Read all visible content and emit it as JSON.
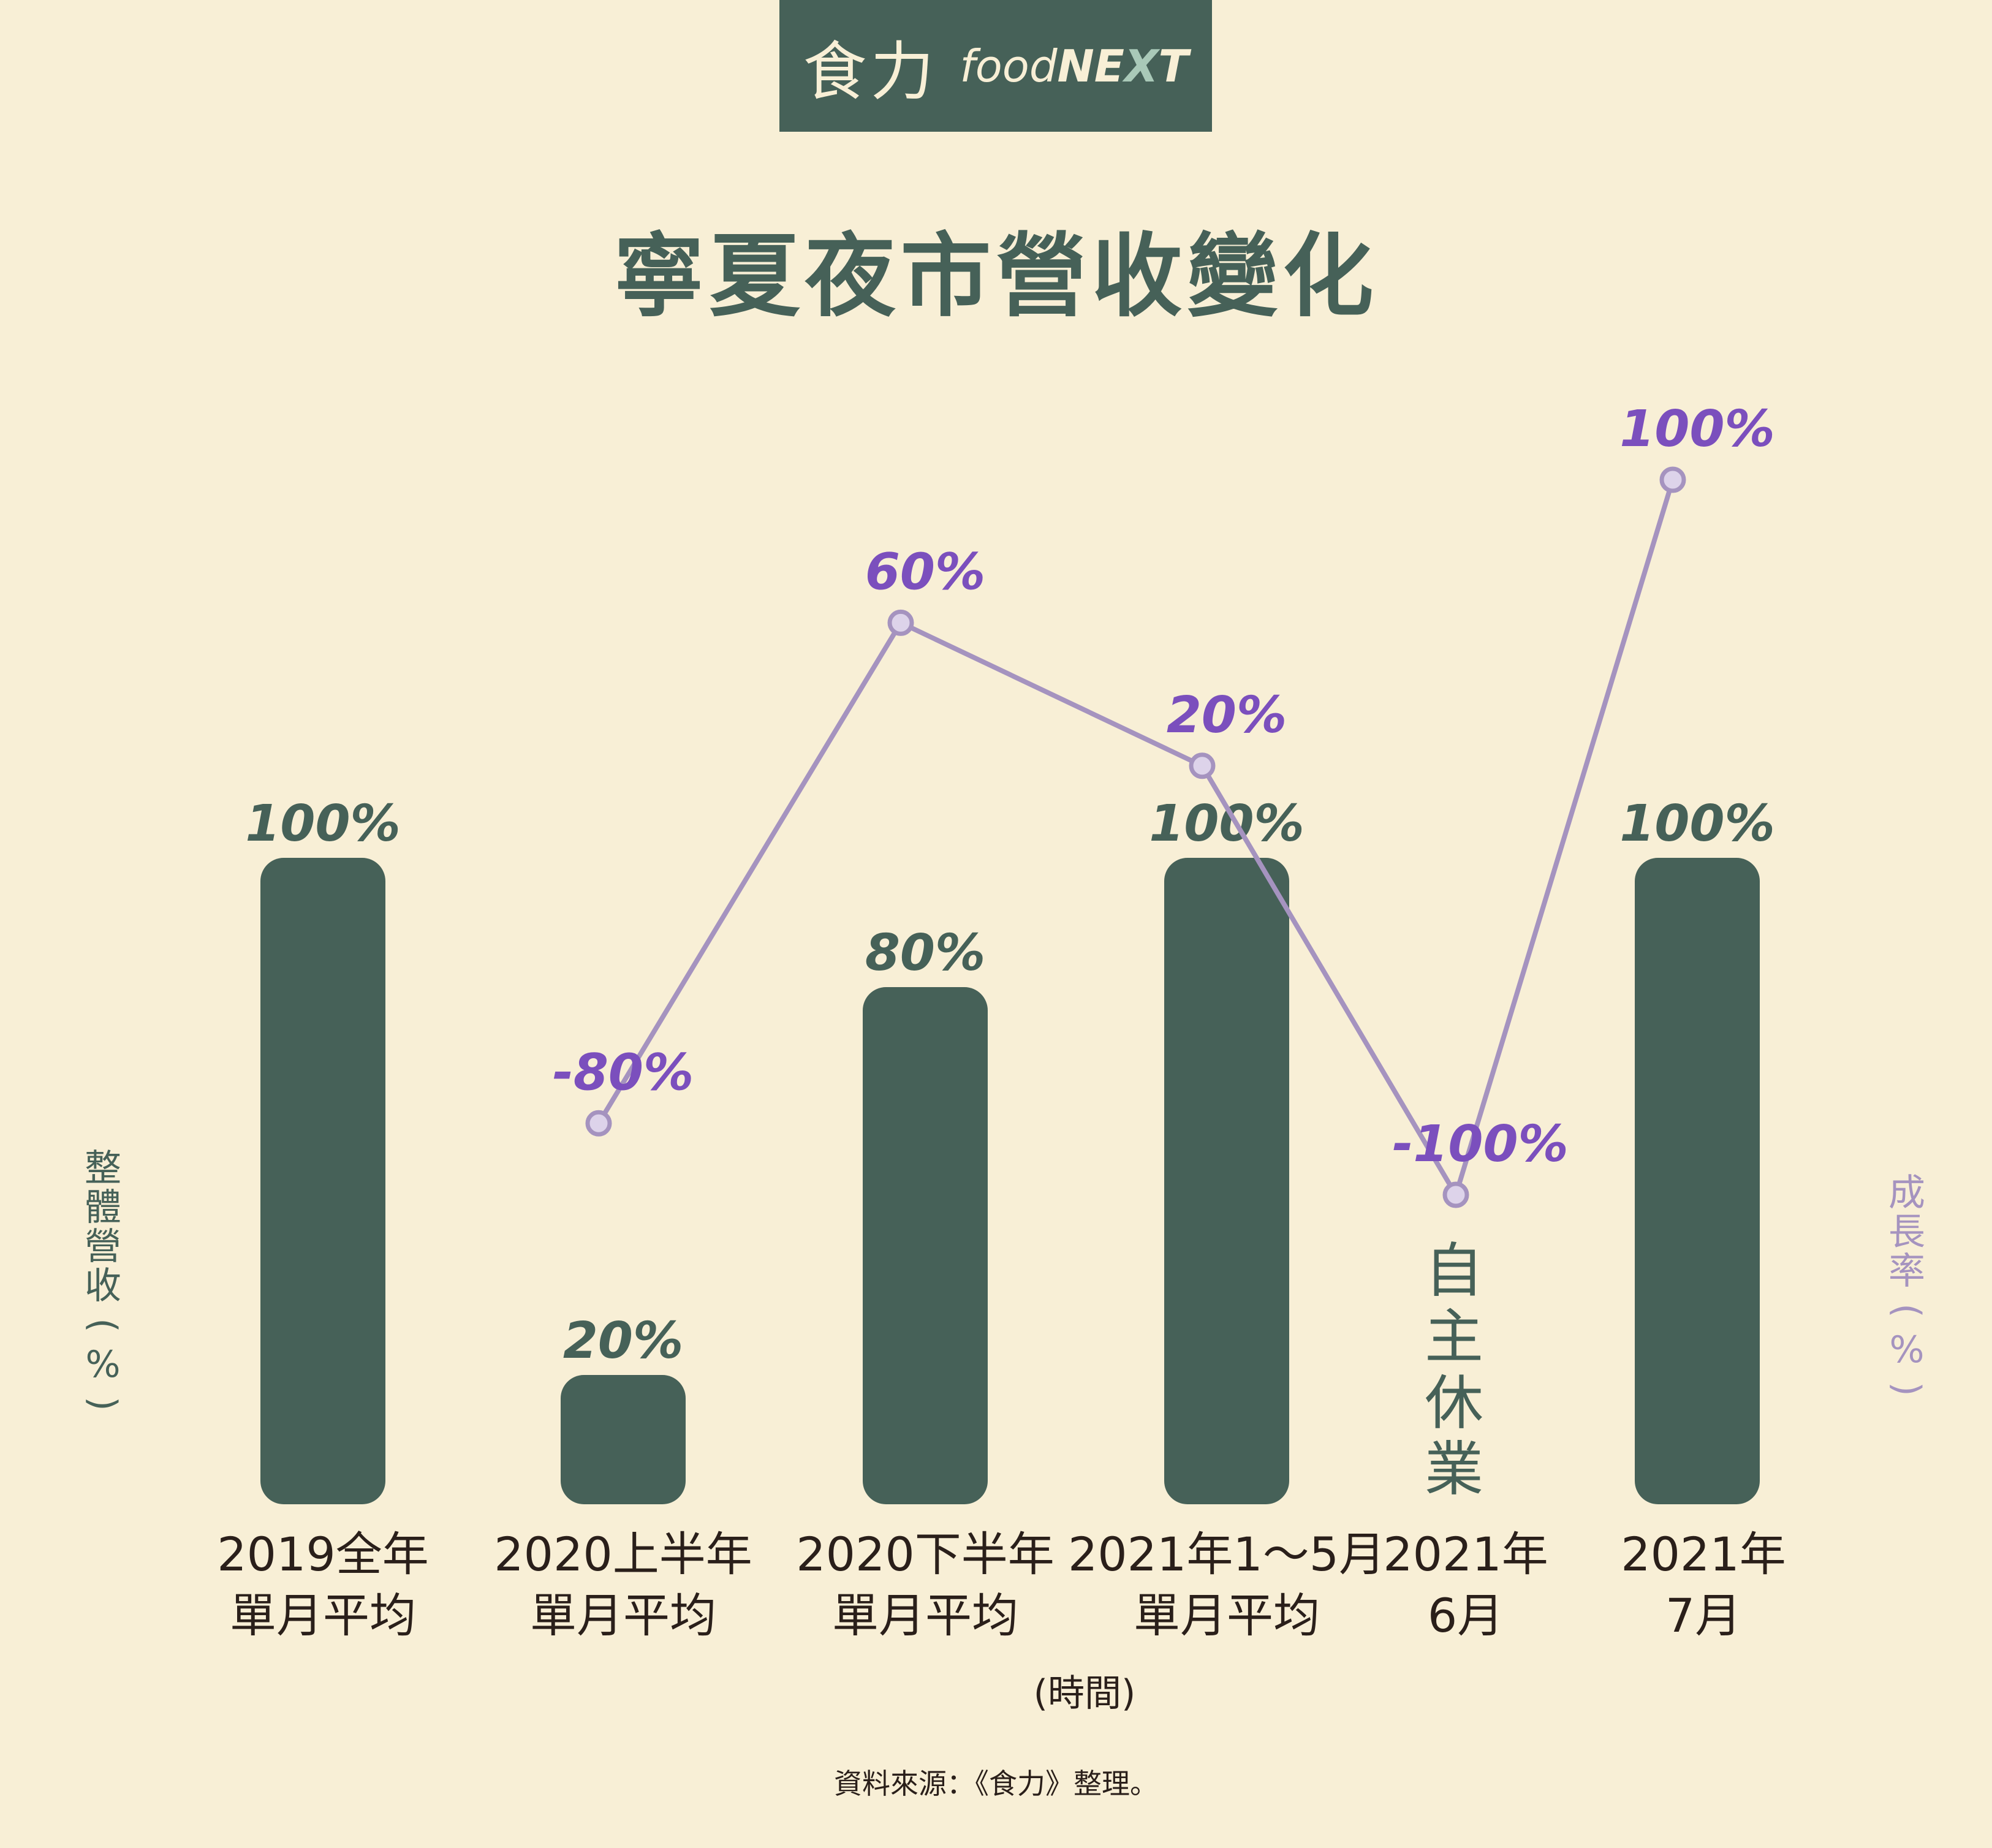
{
  "brand": {
    "chinese": "食力",
    "english_prefix": "food",
    "english_bold": "NE",
    "english_accent": "X",
    "english_tail": "T"
  },
  "title": "寧夏夜市營收變化",
  "left_axis_label": "整體營收(%)",
  "right_axis_label": "成長率(%)",
  "x_axis_label": "(時間)",
  "closed_note": "自主休業",
  "source": "資料來源：《食力》整理。",
  "colors": {
    "bar": "#466158",
    "line": "#a593bf",
    "line_label": "#7b4fbd",
    "bar_label": "#466158",
    "background": "#f8efd6"
  },
  "chart_data": {
    "type": "bar",
    "categories": [
      {
        "line1": "2019全年",
        "line2": "單月平均"
      },
      {
        "line1": "2020上半年",
        "line2": "單月平均"
      },
      {
        "line1": "2020下半年",
        "line2": "單月平均"
      },
      {
        "line1": "2021年1～5月",
        "line2": "單月平均"
      },
      {
        "line1": "2021年",
        "line2": "6月"
      },
      {
        "line1": "2021年",
        "line2": "7月"
      }
    ],
    "bars": [
      {
        "value": 100,
        "label": "100%"
      },
      {
        "value": 20,
        "label": "20%"
      },
      {
        "value": 80,
        "label": "80%"
      },
      {
        "value": 100,
        "label": "100%"
      },
      {
        "value": null,
        "label": ""
      },
      {
        "value": 100,
        "label": "100%"
      }
    ],
    "line": [
      {
        "category_index": 1,
        "value": -80,
        "label": "-80%"
      },
      {
        "category_index": 2,
        "value": 60,
        "label": "60%"
      },
      {
        "category_index": 3,
        "value": 20,
        "label": "20%"
      },
      {
        "category_index": 4,
        "value": -100,
        "label": "-100%"
      },
      {
        "category_index": 5,
        "value": 100,
        "label": "100%"
      }
    ],
    "bar_ylim": [
      0,
      100
    ],
    "line_ylim": [
      -100,
      100
    ],
    "grid": false
  }
}
